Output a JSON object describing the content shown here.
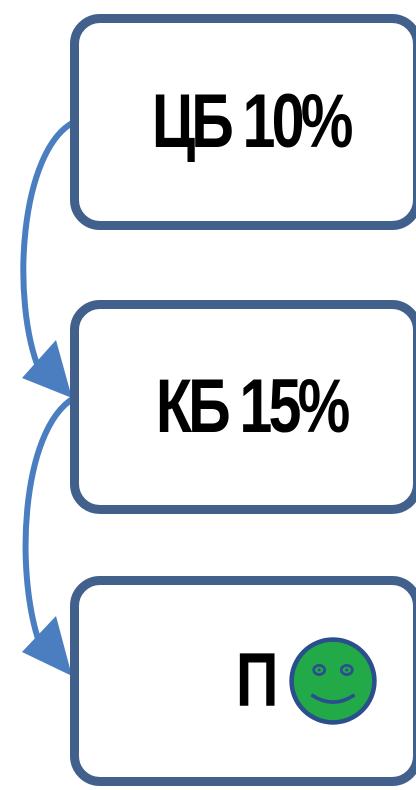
{
  "diagram": {
    "nodes": [
      {
        "id": "cb",
        "label": "ЦБ 10%"
      },
      {
        "id": "kb",
        "label": "КБ 15%"
      },
      {
        "id": "p",
        "label": "П",
        "icon": "smiley-face-icon"
      }
    ],
    "edges": [
      {
        "from": "cb",
        "to": "kb"
      },
      {
        "from": "kb",
        "to": "p"
      }
    ]
  },
  "colors": {
    "box_border": "#41608c",
    "arrow": "#4a7ec0",
    "smiley_fill": "#22aa48",
    "smiley_stroke": "#2b4f8c"
  }
}
